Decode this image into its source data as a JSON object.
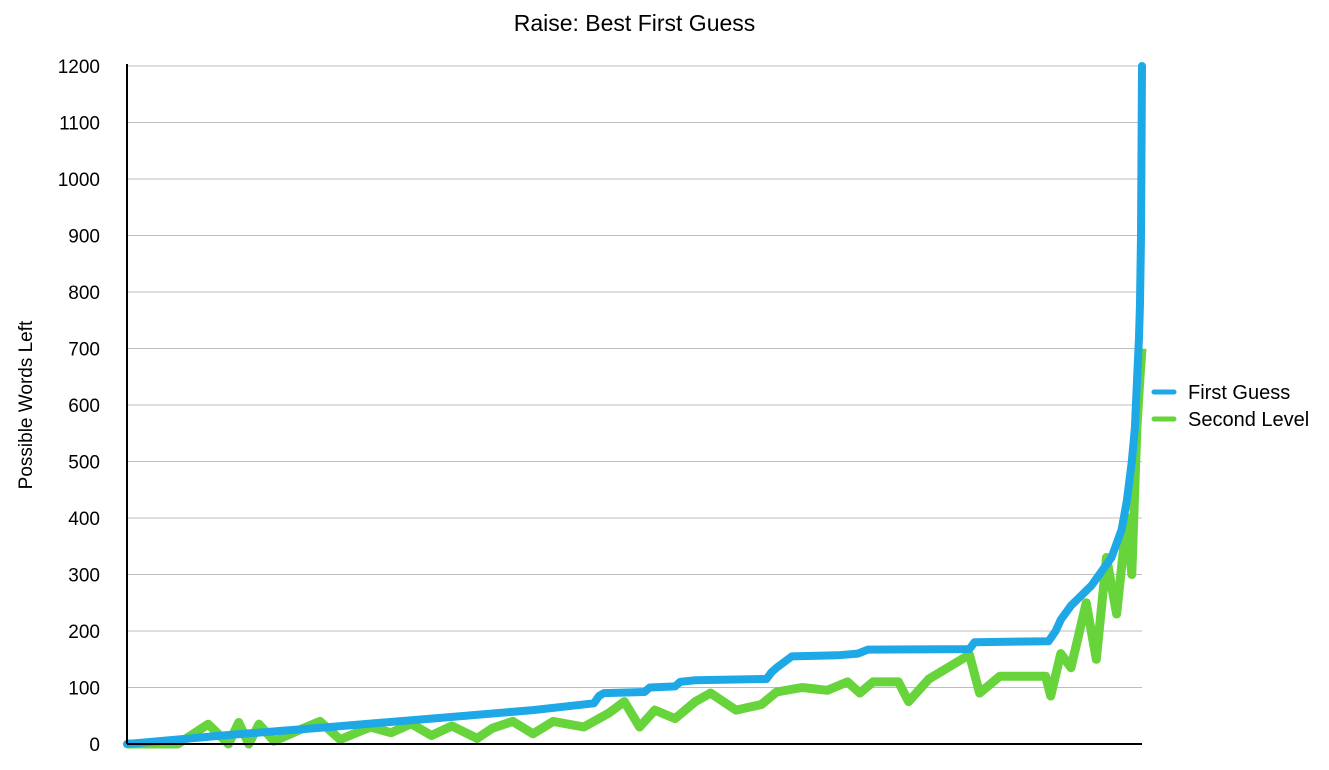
{
  "chart_data": {
    "type": "line",
    "title": "Raise: Best First Guess",
    "xlabel": "",
    "ylabel": "Possible Words Left",
    "ylim": [
      0,
      1200
    ],
    "yticks": [
      0,
      100,
      200,
      300,
      400,
      500,
      600,
      700,
      800,
      900,
      1000,
      1100,
      1200
    ],
    "xlim": [
      0,
      1000
    ],
    "grid": true,
    "legend_position": "right",
    "series": [
      {
        "name": "First Guess",
        "color": "#1ea8e6",
        "points": [
          [
            0,
            0
          ],
          [
            100,
            16
          ],
          [
            200,
            30
          ],
          [
            300,
            45
          ],
          [
            400,
            60
          ],
          [
            460,
            72
          ],
          [
            465,
            85
          ],
          [
            470,
            90
          ],
          [
            510,
            92
          ],
          [
            515,
            100
          ],
          [
            540,
            102
          ],
          [
            545,
            110
          ],
          [
            560,
            113
          ],
          [
            630,
            115
          ],
          [
            635,
            127
          ],
          [
            640,
            135
          ],
          [
            655,
            155
          ],
          [
            700,
            157
          ],
          [
            720,
            160
          ],
          [
            730,
            167
          ],
          [
            830,
            168
          ],
          [
            835,
            180
          ],
          [
            908,
            182
          ],
          [
            915,
            200
          ],
          [
            920,
            220
          ],
          [
            930,
            245
          ],
          [
            950,
            280
          ],
          [
            970,
            330
          ],
          [
            980,
            380
          ],
          [
            985,
            430
          ],
          [
            990,
            500
          ],
          [
            993,
            560
          ],
          [
            995,
            640
          ],
          [
            997,
            720
          ],
          [
            998,
            780
          ],
          [
            999,
            900
          ],
          [
            1000,
            1200
          ]
        ]
      },
      {
        "name": "Second Level",
        "color": "#66d43a",
        "fill_band": true,
        "points": [
          [
            0,
            0
          ],
          [
            50,
            -5
          ],
          [
            80,
            35
          ],
          [
            100,
            0
          ],
          [
            110,
            38
          ],
          [
            120,
            0
          ],
          [
            130,
            35
          ],
          [
            145,
            5
          ],
          [
            170,
            25
          ],
          [
            190,
            40
          ],
          [
            210,
            8
          ],
          [
            240,
            30
          ],
          [
            260,
            20
          ],
          [
            280,
            36
          ],
          [
            300,
            15
          ],
          [
            320,
            32
          ],
          [
            345,
            10
          ],
          [
            360,
            28
          ],
          [
            380,
            40
          ],
          [
            400,
            18
          ],
          [
            420,
            40
          ],
          [
            450,
            30
          ],
          [
            475,
            55
          ],
          [
            490,
            75
          ],
          [
            505,
            30
          ],
          [
            520,
            60
          ],
          [
            540,
            45
          ],
          [
            560,
            75
          ],
          [
            575,
            90
          ],
          [
            600,
            60
          ],
          [
            625,
            70
          ],
          [
            640,
            92
          ],
          [
            665,
            100
          ],
          [
            690,
            95
          ],
          [
            710,
            110
          ],
          [
            722,
            90
          ],
          [
            735,
            110
          ],
          [
            760,
            110
          ],
          [
            770,
            75
          ],
          [
            790,
            115
          ],
          [
            830,
            158
          ],
          [
            840,
            90
          ],
          [
            860,
            120
          ],
          [
            905,
            120
          ],
          [
            910,
            85
          ],
          [
            920,
            160
          ],
          [
            930,
            135
          ],
          [
            945,
            250
          ],
          [
            955,
            150
          ],
          [
            965,
            330
          ],
          [
            975,
            230
          ],
          [
            985,
            400
          ],
          [
            990,
            300
          ],
          [
            995,
            560
          ],
          [
            998,
            650
          ],
          [
            1000,
            700
          ]
        ]
      }
    ]
  }
}
